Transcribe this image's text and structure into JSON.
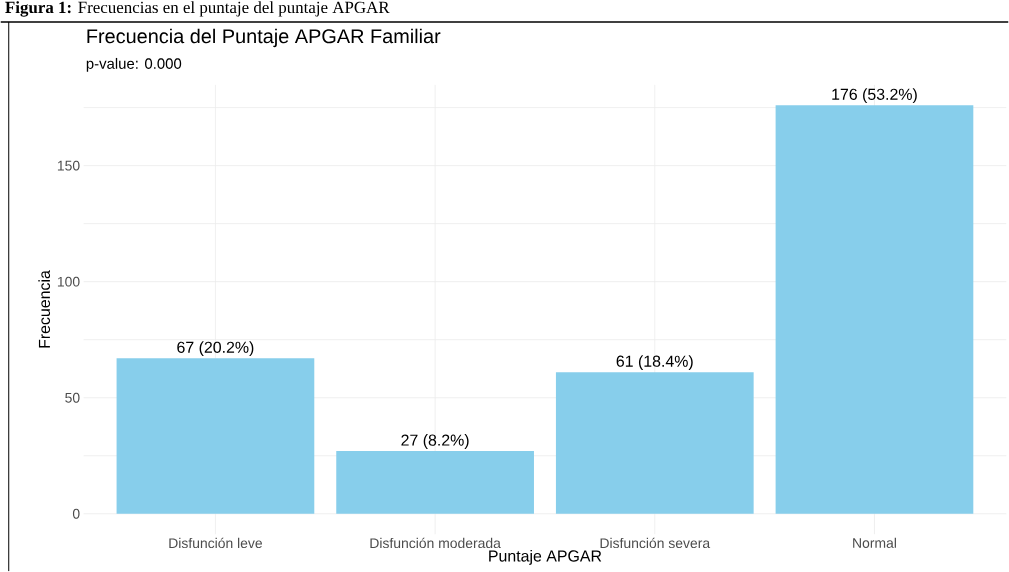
{
  "chart_data": {
    "type": "bar",
    "title": "Frecuencia del Puntaje APGAR Familiar",
    "subtitle": "p-value: 0.000",
    "xlabel": "Puntaje APGAR",
    "ylabel": "Frecuencia",
    "annotations": [
      "**Figura 1:** Frecuencias en el puntaje del puntaje APGAR"
    ],
    "categories": [
      "Disfunción leve",
      "Disfunción moderada",
      "Disfunción severa",
      "Normal"
    ],
    "values": [
      67,
      27,
      61,
      176
    ],
    "value_labels": [
      "67 (20.2%)",
      "27 (8.2%)",
      "61 (18.4%)",
      "176 (53.2%)"
    ],
    "color": "#87ceeb",
    "ylim": [
      -8.8,
      184.8
    ],
    "yticks": [
      0,
      {
        "value": 25,
        "label": null
      },
      50,
      {
        "value": 75,
        "label": null
      },
      100,
      {
        "value": 125,
        "label": null
      },
      150,
      {
        "value": 175,
        "label": null
      }
    ],
    "grid": true
  }
}
